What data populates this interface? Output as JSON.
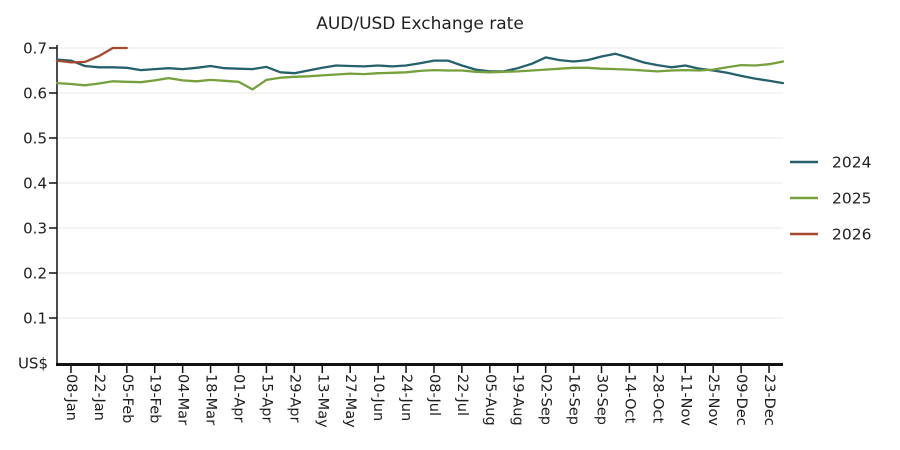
{
  "chart_data": {
    "type": "line",
    "title": "AUD/USD Exchange rate",
    "xlabel": "",
    "ylabel": "US$",
    "ylim": [
      0,
      0.7
    ],
    "grid": "horizontal-only",
    "legend_position": "right-outside",
    "x_unit": "weekly dates, 53 weeks starting 01-Jan",
    "x_count": 53,
    "colors": {
      "axis": "#111111",
      "grid": "#e8e8e8",
      "text": "#1c1c1c"
    },
    "yticks": [
      {
        "v": 0.1,
        "label": "0.1"
      },
      {
        "v": 0.2,
        "label": "0.2"
      },
      {
        "v": 0.3,
        "label": "0.3"
      },
      {
        "v": 0.4,
        "label": "0.4"
      },
      {
        "v": 0.5,
        "label": "0.5"
      },
      {
        "v": 0.6,
        "label": "0.6"
      },
      {
        "v": 0.7,
        "label": "0.7"
      }
    ],
    "xticks": [
      {
        "week": 1,
        "label": "08-Jan"
      },
      {
        "week": 3,
        "label": "22-Jan"
      },
      {
        "week": 5,
        "label": "05-Feb"
      },
      {
        "week": 7,
        "label": "19-Feb"
      },
      {
        "week": 9,
        "label": "04-Mar"
      },
      {
        "week": 11,
        "label": "18-Mar"
      },
      {
        "week": 13,
        "label": "01-Apr"
      },
      {
        "week": 15,
        "label": "15-Apr"
      },
      {
        "week": 17,
        "label": "29-Apr"
      },
      {
        "week": 19,
        "label": "13-May"
      },
      {
        "week": 21,
        "label": "27-May"
      },
      {
        "week": 23,
        "label": "10-Jun"
      },
      {
        "week": 25,
        "label": "24-Jun"
      },
      {
        "week": 27,
        "label": "08-Jul"
      },
      {
        "week": 29,
        "label": "22-Jul"
      },
      {
        "week": 31,
        "label": "05-Aug"
      },
      {
        "week": 33,
        "label": "19-Aug"
      },
      {
        "week": 35,
        "label": "02-Sep"
      },
      {
        "week": 37,
        "label": "16-Sep"
      },
      {
        "week": 39,
        "label": "30-Sep"
      },
      {
        "week": 41,
        "label": "14-Oct"
      },
      {
        "week": 43,
        "label": "28-Oct"
      },
      {
        "week": 45,
        "label": "11-Nov"
      },
      {
        "week": 47,
        "label": "25-Nov"
      },
      {
        "week": 49,
        "label": "09-Dec"
      },
      {
        "week": 51,
        "label": "23-Dec"
      }
    ],
    "series": [
      {
        "name": "2024",
        "color": "#25606d",
        "values": [
          0.674,
          0.672,
          0.66,
          0.657,
          0.657,
          0.656,
          0.651,
          0.653,
          0.655,
          0.653,
          0.656,
          0.66,
          0.655,
          0.654,
          0.653,
          0.658,
          0.646,
          0.644,
          0.65,
          0.656,
          0.661,
          0.66,
          0.659,
          0.661,
          0.659,
          0.661,
          0.666,
          0.672,
          0.672,
          0.661,
          0.652,
          0.648,
          0.648,
          0.655,
          0.665,
          0.679,
          0.673,
          0.67,
          0.673,
          0.681,
          0.687,
          0.678,
          0.668,
          0.662,
          0.657,
          0.661,
          0.654,
          0.65,
          0.645,
          0.638,
          0.632,
          0.627,
          0.622
        ]
      },
      {
        "name": "2025",
        "color": "#75a03c",
        "values": [
          0.622,
          0.62,
          0.617,
          0.621,
          0.626,
          0.625,
          0.624,
          0.628,
          0.633,
          0.628,
          0.626,
          0.629,
          0.627,
          0.625,
          0.608,
          0.629,
          0.634,
          0.636,
          0.637,
          0.639,
          0.641,
          0.643,
          0.642,
          0.644,
          0.645,
          0.646,
          0.649,
          0.651,
          0.65,
          0.65,
          0.647,
          0.646,
          0.647,
          0.648,
          0.65,
          0.652,
          0.654,
          0.656,
          0.656,
          0.654,
          0.653,
          0.652,
          0.65,
          0.648,
          0.65,
          0.651,
          0.65,
          0.652,
          0.657,
          0.662,
          0.661,
          0.664,
          0.67
        ]
      },
      {
        "name": "2026",
        "color": "#a5482e",
        "values": [
          0.672,
          0.668,
          0.669,
          0.682,
          0.7,
          0.7
        ]
      }
    ]
  }
}
